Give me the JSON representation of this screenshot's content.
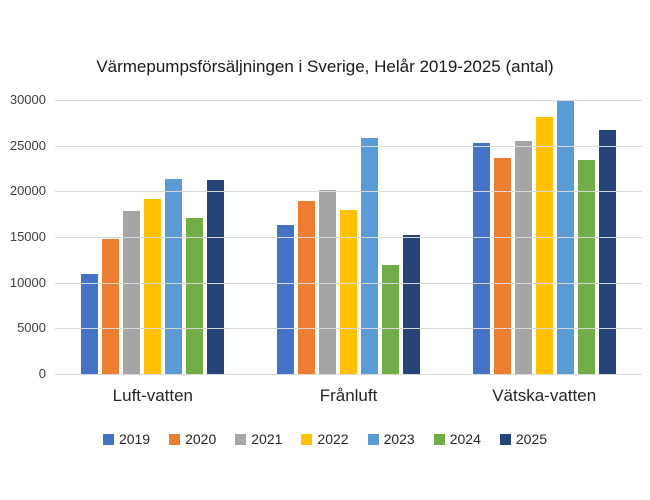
{
  "chart_data": {
    "type": "bar",
    "title": "Värmepumpsförsäljningen i Sverige, Helår 2019-2025 (antal)",
    "categories": [
      "Luft-vatten",
      "Frånluft",
      "Vätska-vatten"
    ],
    "series": [
      {
        "name": "2019",
        "color": "#4472C4",
        "values": [
          11000,
          16300,
          25300
        ]
      },
      {
        "name": "2020",
        "color": "#ED7D31",
        "values": [
          14800,
          18900,
          23700
        ]
      },
      {
        "name": "2021",
        "color": "#A5A5A5",
        "values": [
          17800,
          20100,
          25500
        ]
      },
      {
        "name": "2022",
        "color": "#FFC000",
        "values": [
          19200,
          18000,
          28100
        ]
      },
      {
        "name": "2023",
        "color": "#5B9BD5",
        "values": [
          21300,
          25800,
          30000
        ]
      },
      {
        "name": "2024",
        "color": "#70AD47",
        "values": [
          17100,
          11900,
          23400
        ]
      },
      {
        "name": "2025",
        "color": "#264478",
        "values": [
          21200,
          15200,
          26700
        ]
      }
    ],
    "ylim": [
      0,
      30000
    ],
    "yticks": [
      30000,
      25000,
      20000,
      15000,
      10000,
      5000,
      0
    ],
    "xlabel": "",
    "ylabel": "",
    "grid": "horizontal",
    "grid_color": "#D9D9D9",
    "legend_position": "bottom"
  }
}
